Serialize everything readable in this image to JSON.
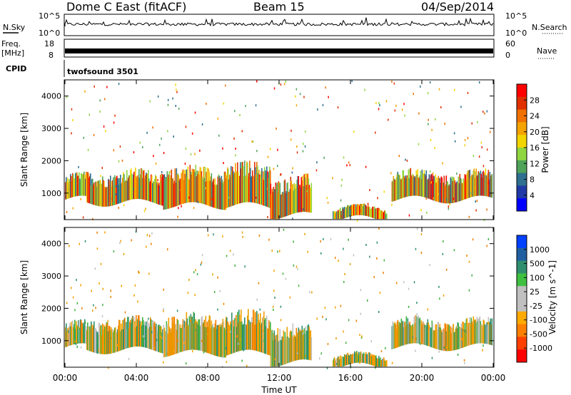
{
  "header": {
    "station": "Dome C East (fitACF)",
    "beam": "Beam 15",
    "date": "04/Sep/2014"
  },
  "sky_panel": {
    "left_label": "N.Sky",
    "right_label": "N.Search",
    "tick_top": "10^5",
    "tick_bottom": "10^0",
    "right_tick_top": "10^5",
    "right_tick_bottom": "10^0"
  },
  "freq_panel": {
    "left_label_1": "Freq.",
    "left_label_2": "[MHz]",
    "left_tick_top": "18",
    "left_tick_bottom": "8",
    "right_label": "Nave",
    "right_tick_top": "60",
    "right_tick_bottom": "0"
  },
  "cpid_panel": {
    "label": "CPID",
    "value": "twofsound 3501"
  },
  "time_axis": {
    "label": "Time UT",
    "ticks": [
      "00:00",
      "04:00",
      "08:00",
      "12:00",
      "16:00",
      "20:00",
      "00:00"
    ]
  },
  "colors": {
    "power_scale": [
      "#0000ff",
      "#1f3aa6",
      "#2f6f8f",
      "#4fa35a",
      "#8fd640",
      "#f2d400",
      "#f5a300",
      "#f07000",
      "#e03000",
      "#ff0000"
    ],
    "velocity_scale": [
      "#ff0000",
      "#ff4000",
      "#ff8000",
      "#ffaa00",
      "#c0c0c0",
      "#c0c0c0",
      "#40c040",
      "#2f8f6f",
      "#2060a0",
      "#0040ff"
    ]
  },
  "chart_data": [
    {
      "type": "heatmap",
      "name": "power",
      "ylabel": "Slant Range [km]",
      "xlabel": "",
      "xlim": [
        0,
        24
      ],
      "ylim": [
        180,
        4500
      ],
      "yticks": [
        "1000",
        "2000",
        "3000",
        "4000"
      ],
      "colorbar_label": "Power [dB]",
      "colorbar_ticks": [
        "4",
        "8",
        "12",
        "16",
        "20",
        "24",
        "28"
      ],
      "segments": [
        {
          "t0": 0.0,
          "t1": 1.2,
          "base_km": 900,
          "thick_km": 600
        },
        {
          "t0": 1.2,
          "t1": 5.5,
          "base_km": 800,
          "thick_km": 800
        },
        {
          "t0": 5.5,
          "t1": 9.0,
          "base_km": 700,
          "thick_km": 1000
        },
        {
          "t0": 9.0,
          "t1": 11.5,
          "base_km": 700,
          "thick_km": 1100
        },
        {
          "t0": 11.5,
          "t1": 13.8,
          "base_km": 400,
          "thick_km": 1000
        },
        {
          "t0": 15.0,
          "t1": 18.0,
          "base_km": 300,
          "thick_km": 250
        },
        {
          "t0": 18.3,
          "t1": 23.9,
          "base_km": 900,
          "thick_km": 700
        }
      ]
    },
    {
      "type": "heatmap",
      "name": "velocity",
      "ylabel": "Slant Range [km]",
      "xlabel": "Time UT",
      "xlim": [
        0,
        24
      ],
      "ylim": [
        180,
        4500
      ],
      "yticks": [
        "1000",
        "2000",
        "3000",
        "4000"
      ],
      "colorbar_label": "Velocity [m s^-1]",
      "colorbar_ticks": [
        "1000",
        "500",
        "100",
        "25",
        "-25",
        "-100",
        "-500",
        "-1000"
      ],
      "segments": [
        {
          "t0": 0.0,
          "t1": 1.2,
          "base_km": 900,
          "thick_km": 600
        },
        {
          "t0": 1.2,
          "t1": 5.5,
          "base_km": 800,
          "thick_km": 800
        },
        {
          "t0": 5.5,
          "t1": 9.0,
          "base_km": 700,
          "thick_km": 1000
        },
        {
          "t0": 9.0,
          "t1": 11.5,
          "base_km": 700,
          "thick_km": 1100
        },
        {
          "t0": 11.5,
          "t1": 13.8,
          "base_km": 400,
          "thick_km": 1000
        },
        {
          "t0": 15.0,
          "t1": 18.0,
          "base_km": 300,
          "thick_km": 250
        },
        {
          "t0": 18.3,
          "t1": 23.9,
          "base_km": 900,
          "thick_km": 700
        }
      ]
    }
  ]
}
